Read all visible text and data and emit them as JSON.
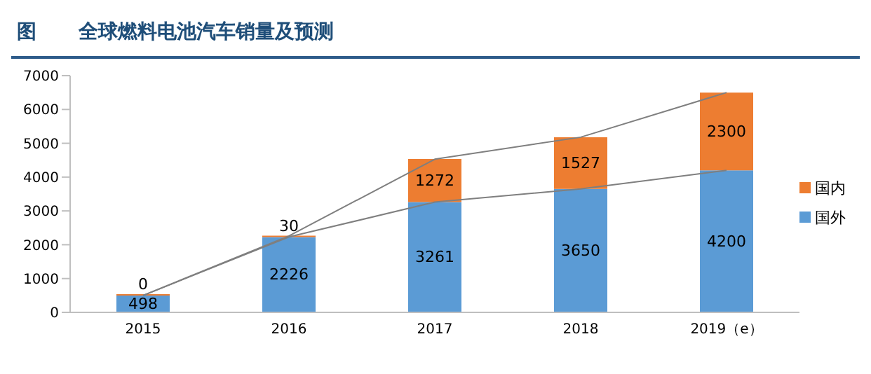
{
  "chart_data": {
    "type": "bar",
    "title": "全球燃料电池汽车销量及预测",
    "annotations": [
      "图"
    ],
    "categories": [
      "2015",
      "2016",
      "2017",
      "2018",
      "2019（e）"
    ],
    "stacked": true,
    "series": [
      {
        "name": "国外",
        "color": "#5b9bd5",
        "values": [
          498,
          2226,
          3261,
          3650,
          4200
        ],
        "value_labels": [
          "498",
          "2226",
          "3261",
          "3650",
          "4200"
        ]
      },
      {
        "name": "国内",
        "color": "#ed7d31",
        "values": [
          0,
          30,
          1272,
          1527,
          2300
        ],
        "value_labels": [
          "0",
          "30",
          "1272",
          "1527",
          "2300"
        ]
      },
      {
        "type": "line",
        "color": "#7f7f7f",
        "values": [
          500,
          2230,
          3260,
          3650,
          4200
        ]
      },
      {
        "type": "line",
        "color": "#7f7f7f",
        "values": [
          500,
          2260,
          4530,
          5180,
          6500
        ]
      }
    ],
    "ylim": [
      0,
      7000
    ],
    "yticks": [
      0,
      1000,
      2000,
      3000,
      4000,
      5000,
      6000,
      7000
    ],
    "grid": false,
    "legend": "right",
    "marker": "none"
  }
}
